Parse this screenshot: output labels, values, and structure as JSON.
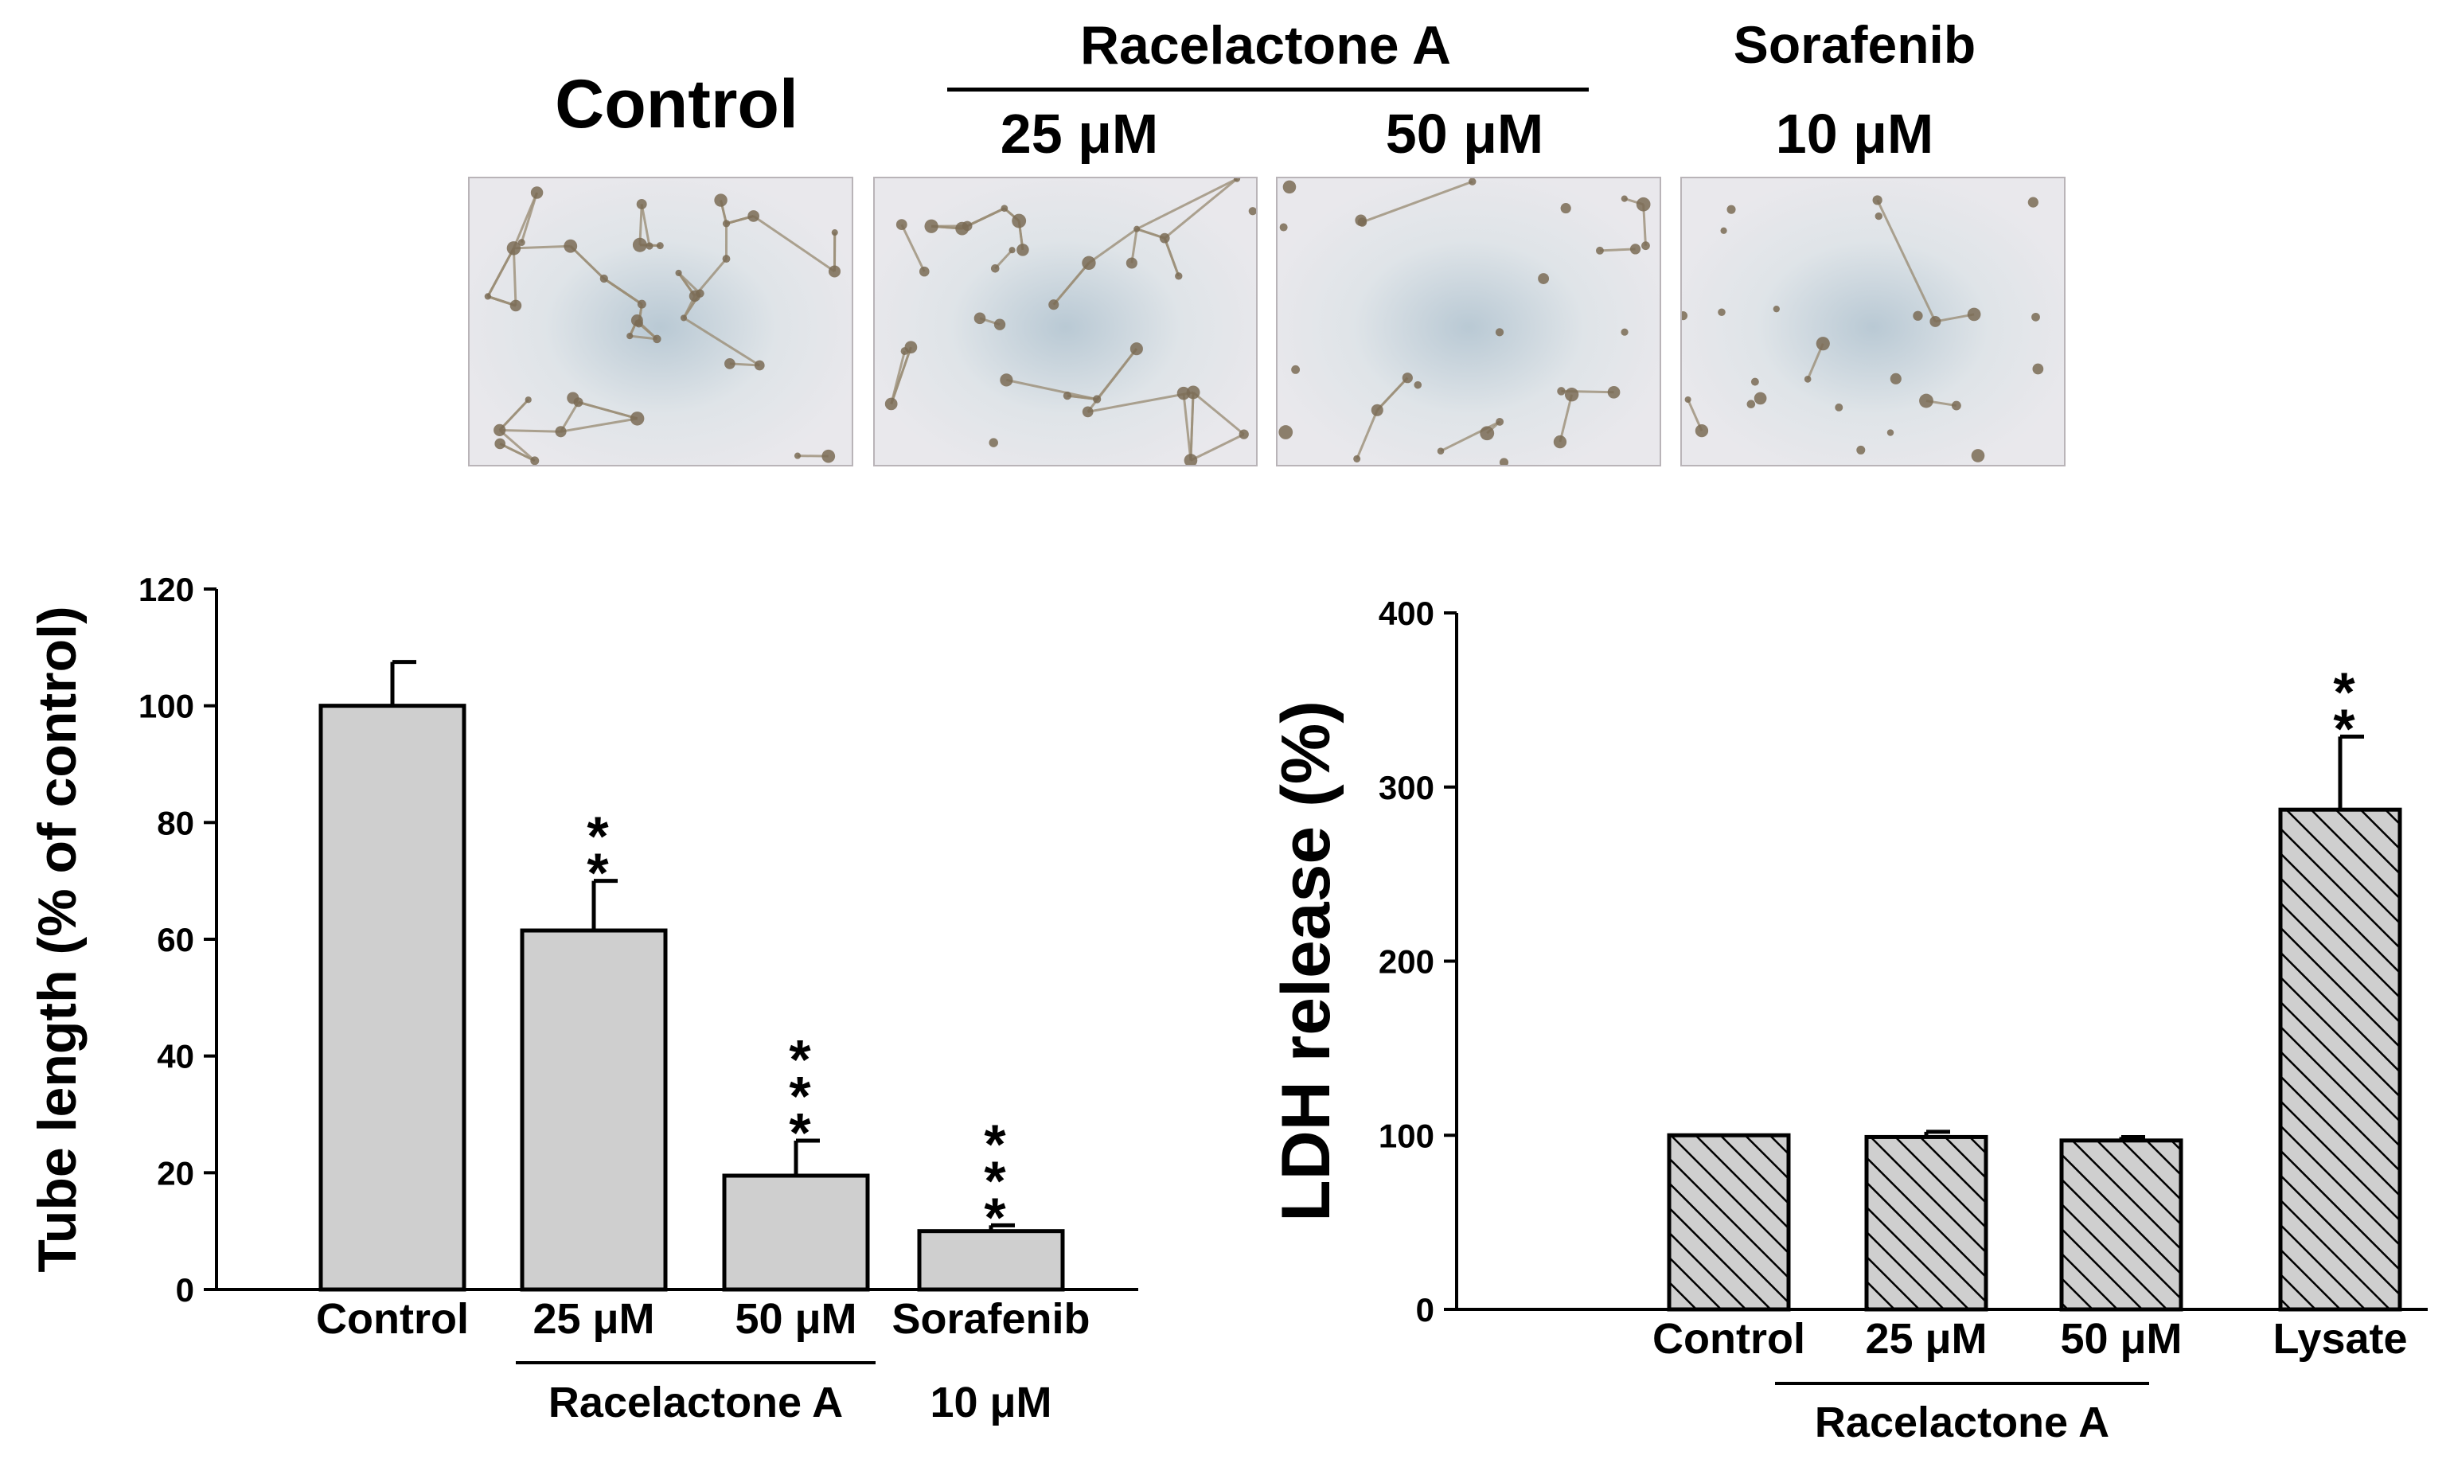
{
  "figure": {
    "header": {
      "control": "Control",
      "racelactone": "Racelactone A",
      "sorafenib": "Sorafenib",
      "dose_25": "25 μM",
      "dose_50": "50 μM",
      "dose_10": "10 μM"
    },
    "micrograph_panels": [
      {
        "condition": "Control",
        "network_density": 1.0
      },
      {
        "condition": "Racelactone A 25 μM",
        "network_density": 0.62
      },
      {
        "condition": "Racelactone A 50 μM",
        "network_density": 0.2
      },
      {
        "condition": "Sorafenib 10 μM",
        "network_density": 0.1
      }
    ],
    "colors": {
      "bar_fill": "#cfcfcf",
      "bar_stroke": "#000000",
      "hatch": "#000000",
      "micro_bg": "#e9e8ec",
      "micro_center": "#b9c9d4",
      "cell": "#7a6b55"
    }
  },
  "chart_data": [
    {
      "type": "bar",
      "ylabel": "Tube length (% of control)",
      "ylim": [
        0,
        120
      ],
      "yticks": [
        0,
        20,
        40,
        60,
        80,
        100,
        120
      ],
      "categories": [
        "Control",
        "25 μM",
        "50 μM",
        "Sorafenib"
      ],
      "group_label": "Racelactone A",
      "extra_label": "10 μM",
      "values": [
        100,
        61.5,
        19.5,
        10
      ],
      "errors": [
        7.5,
        8.5,
        6,
        1
      ],
      "significance": [
        "",
        "**",
        "***",
        "***"
      ],
      "fill": "solid"
    },
    {
      "type": "bar",
      "ylabel": "LDH release (%)",
      "ylim": [
        0,
        400
      ],
      "yticks": [
        0,
        100,
        200,
        300,
        400
      ],
      "categories": [
        "Control",
        "25 μM",
        "50 μM",
        "Lysate"
      ],
      "group_label": "Racelactone A",
      "values": [
        100,
        99,
        97,
        287
      ],
      "errors": [
        0,
        3,
        2,
        42
      ],
      "significance": [
        "",
        "",
        "",
        "**"
      ],
      "fill": "hatched"
    }
  ]
}
